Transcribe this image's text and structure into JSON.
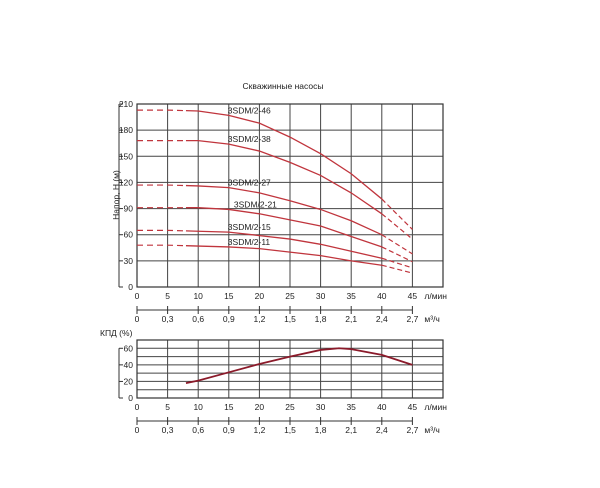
{
  "chart_data": [
    {
      "type": "line",
      "title": "Скважинные насосы",
      "ylabel": "Напор, H (м)",
      "xlabel": "л/мин",
      "x2label": "м³/ч",
      "xlim": [
        0,
        50
      ],
      "ylim": [
        0,
        210
      ],
      "xticks": [
        0,
        5,
        10,
        15,
        20,
        25,
        30,
        35,
        40,
        45
      ],
      "x2ticks": [
        "0",
        "0,3",
        "0,6",
        "0,9",
        "1,2",
        "1,5",
        "1,8",
        "2,1",
        "2,4",
        "2,7"
      ],
      "yticks": [
        0,
        30,
        60,
        90,
        120,
        150,
        180,
        210
      ],
      "grid": true,
      "color": "#c0353d",
      "x": [
        0,
        5,
        10,
        15,
        20,
        25,
        30,
        35,
        40,
        45
      ],
      "series": [
        {
          "name": "3SDM/2-46",
          "values": [
            203,
            203,
            202,
            197,
            188,
            172,
            153,
            130,
            101,
            66
          ]
        },
        {
          "name": "3SDM/2-38",
          "values": [
            168,
            168,
            168,
            164,
            156,
            143,
            128,
            108,
            84,
            55
          ]
        },
        {
          "name": "3SDM/2-27",
          "values": [
            117,
            117,
            116,
            114,
            108,
            99,
            89,
            76,
            60,
            38
          ]
        },
        {
          "name": "3SDM/2-21",
          "values": [
            91,
            91,
            91,
            89,
            84,
            77,
            70,
            58,
            46,
            29
          ]
        },
        {
          "name": "3SDM/2-15",
          "values": [
            65,
            65,
            64,
            63,
            59,
            55,
            49,
            41,
            33,
            22
          ]
        },
        {
          "name": "3SDM/2-11",
          "values": [
            48,
            48,
            47,
            46,
            44,
            40,
            36,
            30,
            25,
            16
          ]
        }
      ]
    },
    {
      "type": "line",
      "ylabel": "КПД  (%)",
      "xlabel": "л/мин",
      "x2label": "м³/ч",
      "xlim": [
        0,
        50
      ],
      "ylim": [
        0,
        70
      ],
      "xticks": [
        0,
        5,
        10,
        15,
        20,
        25,
        30,
        35,
        40,
        45
      ],
      "x2ticks": [
        "0",
        "0,3",
        "0,6",
        "0,9",
        "1,2",
        "1,5",
        "1,8",
        "2,1",
        "2,4",
        "2,7"
      ],
      "yticks": [
        0,
        20,
        40,
        60
      ],
      "grid": true,
      "color": "#8b1a2a",
      "x": [
        8,
        10,
        15,
        20,
        25,
        30,
        33,
        35,
        40,
        45
      ],
      "values": [
        18,
        21,
        31,
        41,
        50,
        58,
        60,
        59,
        52,
        40
      ]
    }
  ]
}
